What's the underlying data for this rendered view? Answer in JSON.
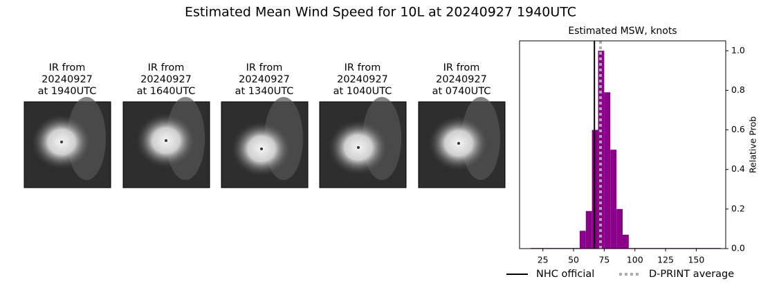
{
  "title": "Estimated Mean Wind Speed for 10L at 20240927 1940UTC",
  "panels": [
    {
      "lines": [
        "IR from",
        "20240927",
        "at 1940UTC"
      ]
    },
    {
      "lines": [
        "IR from",
        "20240927",
        "at 1640UTC"
      ]
    },
    {
      "lines": [
        "IR from",
        "20240927",
        "at 1340UTC"
      ]
    },
    {
      "lines": [
        "IR from",
        "20240927",
        "at 1040UTC"
      ]
    },
    {
      "lines": [
        "IR from",
        "20240927",
        "at 0740UTC"
      ]
    }
  ],
  "chart_data": {
    "type": "histogram",
    "title": "Estimated MSW, knots",
    "y_label": "Relative Prob",
    "color": "#8b008b",
    "bins": [
      15,
      20,
      25,
      30,
      35,
      40,
      45,
      50,
      55,
      60,
      65,
      70,
      75,
      80,
      85,
      90,
      95,
      100,
      105,
      110,
      115,
      120,
      125,
      130,
      135,
      140,
      145,
      150,
      155,
      160,
      165,
      170
    ],
    "values": [
      0.003,
      0.003,
      0.003,
      0.003,
      0.003,
      0.003,
      0.003,
      0.003,
      0.09,
      0.19,
      0.6,
      1.0,
      0.79,
      0.5,
      0.2,
      0.07,
      0.003,
      0.003,
      0.003,
      0.003,
      0.003,
      0.003,
      0.003,
      0.003,
      0.003,
      0.003,
      0.003,
      0.003,
      0.003,
      0.003,
      0.003
    ],
    "xlim": [
      6,
      174
    ],
    "ylim": [
      0,
      1.05
    ],
    "xticks": [
      25,
      50,
      75,
      100,
      125,
      150
    ],
    "yticks": [
      {
        "value": 0,
        "label": "0.0"
      },
      {
        "value": 0.2,
        "label": "0.2"
      },
      {
        "value": 0.4,
        "label": "0.4"
      },
      {
        "value": 0.6,
        "label": "0.6"
      },
      {
        "value": 0.8,
        "label": "0.8"
      },
      {
        "value": 1.0,
        "label": "1.0"
      }
    ],
    "reference_lines": [
      {
        "name": "NHC official",
        "value": 67,
        "color": "#000000",
        "style": "solid"
      },
      {
        "name": "D-PRINT average",
        "value": 72,
        "color": "#aaaaaa",
        "style": "dotted"
      }
    ]
  }
}
